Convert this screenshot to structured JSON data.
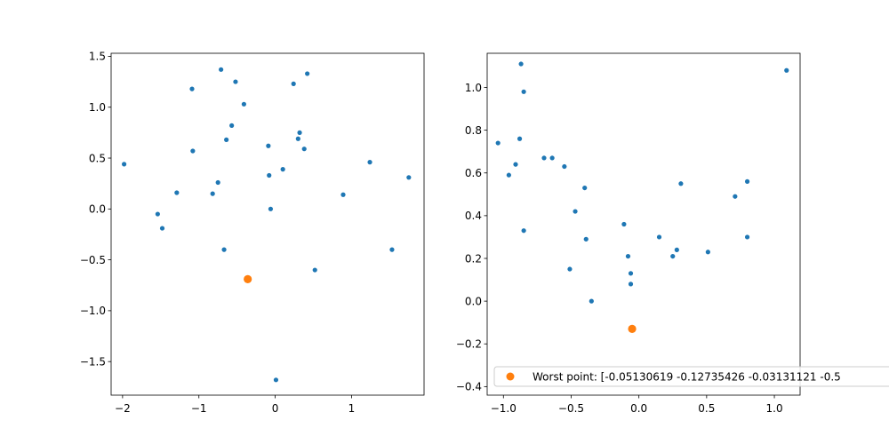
{
  "chart_data": [
    {
      "type": "scatter",
      "xlim": [
        -2.15,
        1.95
      ],
      "ylim": [
        -1.83,
        1.53
      ],
      "xticks": [
        {
          "value": -2,
          "label": "−2"
        },
        {
          "value": -1,
          "label": "−1"
        },
        {
          "value": 0,
          "label": "0"
        },
        {
          "value": 1,
          "label": "1"
        }
      ],
      "yticks": [
        {
          "value": 1.5,
          "label": "1.5"
        },
        {
          "value": 1.0,
          "label": "1.0"
        },
        {
          "value": 0.5,
          "label": "0.5"
        },
        {
          "value": 0.0,
          "label": "0.0"
        },
        {
          "value": -0.5,
          "label": "−0.5"
        },
        {
          "value": -1.0,
          "label": "−1.0"
        },
        {
          "value": -1.5,
          "label": "−1.5"
        }
      ],
      "grid": false,
      "series": [
        {
          "color": "#1f77b4",
          "points": [
            [
              -1.98,
              0.44
            ],
            [
              -1.54,
              -0.05
            ],
            [
              -1.48,
              -0.19
            ],
            [
              -1.29,
              0.16
            ],
            [
              -1.09,
              1.18
            ],
            [
              -1.08,
              0.57
            ],
            [
              -0.82,
              0.15
            ],
            [
              -0.75,
              0.26
            ],
            [
              -0.71,
              1.37
            ],
            [
              -0.67,
              -0.4
            ],
            [
              -0.64,
              0.68
            ],
            [
              -0.57,
              0.82
            ],
            [
              -0.52,
              1.25
            ],
            [
              -0.41,
              1.03
            ],
            [
              -0.09,
              0.62
            ],
            [
              -0.08,
              0.33
            ],
            [
              -0.06,
              0.0
            ],
            [
              0.01,
              -1.68
            ],
            [
              0.1,
              0.39
            ],
            [
              0.24,
              1.23
            ],
            [
              0.3,
              0.69
            ],
            [
              0.32,
              0.75
            ],
            [
              0.38,
              0.59
            ],
            [
              0.42,
              1.33
            ],
            [
              0.52,
              -0.6
            ],
            [
              0.89,
              0.14
            ],
            [
              1.24,
              0.46
            ],
            [
              1.53,
              -0.4
            ],
            [
              1.75,
              0.31
            ]
          ]
        },
        {
          "color": "#ff7f0e",
          "points": [
            [
              -0.36,
              -0.69
            ]
          ]
        }
      ]
    },
    {
      "type": "scatter",
      "xlim": [
        -1.12,
        1.19
      ],
      "ylim": [
        -0.44,
        1.16
      ],
      "xticks": [
        {
          "value": -1.0,
          "label": "−1.0"
        },
        {
          "value": -0.5,
          "label": "−0.5"
        },
        {
          "value": 0.0,
          "label": "0.0"
        },
        {
          "value": 0.5,
          "label": "0.5"
        },
        {
          "value": 1.0,
          "label": "1.0"
        }
      ],
      "yticks": [
        {
          "value": 1.0,
          "label": "1.0"
        },
        {
          "value": 0.8,
          "label": "0.8"
        },
        {
          "value": 0.6,
          "label": "0.6"
        },
        {
          "value": 0.4,
          "label": "0.4"
        },
        {
          "value": 0.2,
          "label": "0.2"
        },
        {
          "value": 0.0,
          "label": "0.0"
        },
        {
          "value": -0.2,
          "label": "−0.2"
        },
        {
          "value": -0.4,
          "label": "−0.4"
        }
      ],
      "grid": false,
      "legend_placement": "lower-right",
      "series": [
        {
          "color": "#1f77b4",
          "points": [
            [
              -1.04,
              0.74
            ],
            [
              -0.96,
              0.59
            ],
            [
              -0.91,
              0.64
            ],
            [
              -0.88,
              0.76
            ],
            [
              -0.87,
              1.11
            ],
            [
              -0.85,
              0.98
            ],
            [
              -0.85,
              0.33
            ],
            [
              -0.7,
              0.67
            ],
            [
              -0.64,
              0.67
            ],
            [
              -0.55,
              0.63
            ],
            [
              -0.51,
              0.15
            ],
            [
              -0.47,
              0.42
            ],
            [
              -0.4,
              0.53
            ],
            [
              -0.39,
              0.29
            ],
            [
              -0.35,
              0.0
            ],
            [
              -0.11,
              0.36
            ],
            [
              -0.08,
              0.21
            ],
            [
              -0.06,
              0.13
            ],
            [
              -0.06,
              0.08
            ],
            [
              0.15,
              0.3
            ],
            [
              0.25,
              0.21
            ],
            [
              0.28,
              0.24
            ],
            [
              0.31,
              0.55
            ],
            [
              0.51,
              0.23
            ],
            [
              0.71,
              0.49
            ],
            [
              0.8,
              0.56
            ],
            [
              0.8,
              0.3
            ],
            [
              1.09,
              1.08
            ]
          ]
        },
        {
          "name": "Worst point: [-0.05130619 -0.12735426 -0.03131121 -0.5",
          "color": "#ff7f0e",
          "points": [
            [
              -0.05,
              -0.13
            ]
          ]
        }
      ]
    }
  ]
}
